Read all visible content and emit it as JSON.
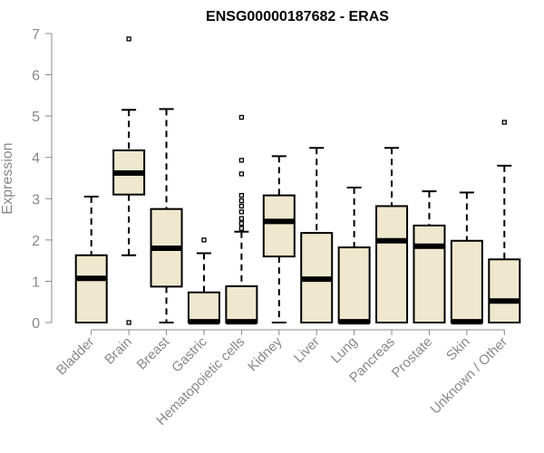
{
  "chart_data": {
    "type": "boxplot",
    "title": "ENSG00000187682 - ERAS",
    "xlabel": "",
    "ylabel": "Expression",
    "ylim": [
      0,
      7
    ],
    "yticks": [
      0,
      1,
      2,
      3,
      4,
      5,
      6,
      7
    ],
    "grid": false,
    "legend": "none",
    "box_fill": "#efe8cf",
    "categories": [
      "Bladder",
      "Brain",
      "Breast",
      "Gastric",
      "Hematopoietic cells",
      "Kidney",
      "Liver",
      "Lung",
      "Pancreas",
      "Prostate",
      "Skin",
      "Unknown / Other"
    ],
    "boxes": [
      {
        "name": "Bladder",
        "q1": 0.0,
        "median": 1.07,
        "q3": 1.63,
        "whisker_low": 0.0,
        "whisker_high": 3.05,
        "outliers": []
      },
      {
        "name": "Brain",
        "q1": 3.1,
        "median": 3.62,
        "q3": 4.17,
        "whisker_low": 1.63,
        "whisker_high": 5.15,
        "outliers": [
          6.87,
          0.0
        ]
      },
      {
        "name": "Breast",
        "q1": 0.87,
        "median": 1.8,
        "q3": 2.75,
        "whisker_low": 0.0,
        "whisker_high": 5.17,
        "outliers": []
      },
      {
        "name": "Gastric",
        "q1": 0.0,
        "median": 0.02,
        "q3": 0.73,
        "whisker_low": 0.0,
        "whisker_high": 1.68,
        "outliers": [
          2.0
        ]
      },
      {
        "name": "Hematopoietic cells",
        "q1": 0.0,
        "median": 0.02,
        "q3": 0.88,
        "whisker_low": 0.0,
        "whisker_high": 2.2,
        "outliers": [
          4.97,
          3.93,
          3.6,
          3.08,
          2.95,
          2.82,
          2.68,
          2.52,
          2.4,
          2.28
        ]
      },
      {
        "name": "Kidney",
        "q1": 1.6,
        "median": 2.45,
        "q3": 3.08,
        "whisker_low": 0.0,
        "whisker_high": 4.03,
        "outliers": []
      },
      {
        "name": "Liver",
        "q1": 0.0,
        "median": 1.05,
        "q3": 2.17,
        "whisker_low": 0.0,
        "whisker_high": 4.23,
        "outliers": []
      },
      {
        "name": "Lung",
        "q1": 0.0,
        "median": 0.02,
        "q3": 1.82,
        "whisker_low": 0.0,
        "whisker_high": 3.27,
        "outliers": []
      },
      {
        "name": "Pancreas",
        "q1": 0.0,
        "median": 1.98,
        "q3": 2.82,
        "whisker_low": 0.0,
        "whisker_high": 4.23,
        "outliers": []
      },
      {
        "name": "Prostate",
        "q1": 0.0,
        "median": 1.85,
        "q3": 2.35,
        "whisker_low": 0.0,
        "whisker_high": 3.18,
        "outliers": []
      },
      {
        "name": "Skin",
        "q1": 0.0,
        "median": 0.02,
        "q3": 1.98,
        "whisker_low": 0.0,
        "whisker_high": 3.15,
        "outliers": []
      },
      {
        "name": "Unknown / Other",
        "q1": 0.0,
        "median": 0.52,
        "q3": 1.53,
        "whisker_low": 0.0,
        "whisker_high": 3.8,
        "outliers": [
          4.85
        ]
      }
    ]
  }
}
